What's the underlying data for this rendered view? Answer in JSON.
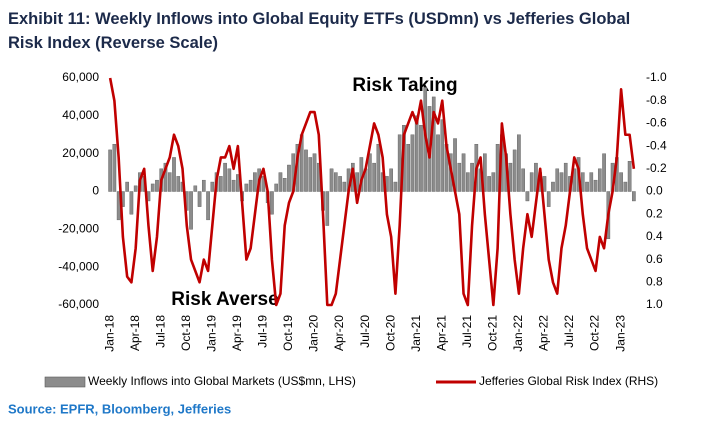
{
  "chart_data": {
    "type": "combo",
    "title": "Exhibit 11: Weekly Inflows into Global Equity ETFs (USDmn) vs Jefferies Global Risk Index (Reverse Scale)",
    "annotations": [
      "Risk Taking",
      "Risk Averse"
    ],
    "source": "Source: EPFR, Bloomberg, Jefferies",
    "categories": [
      "Jan-18",
      null,
      null,
      null,
      null,
      null,
      "Apr-18",
      null,
      null,
      null,
      null,
      null,
      "Jul-18",
      null,
      null,
      null,
      null,
      null,
      "Oct-18",
      null,
      null,
      null,
      null,
      null,
      "Jan-19",
      null,
      null,
      null,
      null,
      null,
      "Apr-19",
      null,
      null,
      null,
      null,
      null,
      "Jul-19",
      null,
      null,
      null,
      null,
      null,
      "Oct-19",
      null,
      null,
      null,
      null,
      null,
      "Jan-20",
      null,
      null,
      null,
      null,
      null,
      "Apr-20",
      null,
      null,
      null,
      null,
      null,
      "Jul-20",
      null,
      null,
      null,
      null,
      null,
      "Oct-20",
      null,
      null,
      null,
      null,
      null,
      "Jan-21",
      null,
      null,
      null,
      null,
      null,
      "Apr-21",
      null,
      null,
      null,
      null,
      null,
      "Jul-21",
      null,
      null,
      null,
      null,
      null,
      "Oct-21",
      null,
      null,
      null,
      null,
      null,
      "Jan-22",
      null,
      null,
      null,
      null,
      null,
      "Apr-22",
      null,
      null,
      null,
      null,
      null,
      "Jul-22",
      null,
      null,
      null,
      null,
      null,
      "Oct-22",
      null,
      null,
      null,
      null,
      null,
      "Jan-23",
      null,
      null,
      null
    ],
    "series": [
      {
        "name": "Weekly Inflows into Global Markets (US$mn, LHS)",
        "type": "bar",
        "color": "#8c8c8c",
        "values": [
          22000,
          25000,
          -15000,
          -8000,
          5000,
          -12000,
          3000,
          10000,
          8000,
          -5000,
          4000,
          6000,
          12000,
          15000,
          10000,
          18000,
          8000,
          5000,
          -10000,
          -20000,
          3000,
          -8000,
          6000,
          -15000,
          5000,
          10000,
          8000,
          15000,
          12000,
          6000,
          9000,
          -5000,
          4000,
          6000,
          10000,
          12000,
          8000,
          -6000,
          -12000,
          4000,
          10000,
          7000,
          14000,
          20000,
          25000,
          30000,
          22000,
          18000,
          20000,
          15000,
          -10000,
          -18000,
          12000,
          10000,
          8000,
          5000,
          12000,
          15000,
          10000,
          18000,
          12000,
          20000,
          15000,
          25000,
          10000,
          8000,
          12000,
          5000,
          30000,
          35000,
          25000,
          30000,
          40000,
          35000,
          55000,
          45000,
          50000,
          30000,
          38000,
          25000,
          20000,
          28000,
          15000,
          20000,
          10000,
          15000,
          25000,
          12000,
          20000,
          8000,
          10000,
          25000,
          30000,
          20000,
          15000,
          22000,
          30000,
          12000,
          -5000,
          10000,
          15000,
          10000,
          8000,
          -8000,
          5000,
          12000,
          10000,
          15000,
          8000,
          12000,
          18000,
          10000,
          5000,
          10000,
          6000,
          12000,
          20000,
          -25000,
          15000,
          18000,
          10000,
          5000,
          16000,
          -5000
        ]
      },
      {
        "name": "Jefferies Global Risk Index (RHS)",
        "type": "line",
        "axis": "y2",
        "color": "#c00000",
        "values": [
          -1.0,
          -0.8,
          -0.3,
          0.4,
          0.75,
          0.8,
          0.5,
          -0.1,
          -0.2,
          0.3,
          0.7,
          0.4,
          -0.1,
          -0.2,
          -0.3,
          -0.5,
          -0.4,
          -0.2,
          0.3,
          0.6,
          0.7,
          0.8,
          0.6,
          0.7,
          0.3,
          -0.1,
          -0.3,
          -0.3,
          -0.4,
          -0.2,
          -0.4,
          0.1,
          0.6,
          0.5,
          0.2,
          -0.1,
          -0.2,
          0.0,
          0.6,
          1.0,
          0.9,
          0.3,
          0.1,
          0.0,
          -0.3,
          -0.5,
          -0.6,
          -0.7,
          -0.7,
          -0.5,
          0.2,
          1.0,
          1.0,
          0.9,
          0.6,
          0.3,
          0.0,
          -0.2,
          0.1,
          -0.1,
          -0.2,
          -0.4,
          -0.6,
          -0.5,
          -0.3,
          0.2,
          0.4,
          0.9,
          0.3,
          -0.5,
          -0.6,
          -0.7,
          -0.6,
          -0.8,
          -0.5,
          -0.3,
          -0.7,
          -0.6,
          -0.8,
          -0.4,
          -0.2,
          0.0,
          0.2,
          0.9,
          1.0,
          0.3,
          -0.2,
          -0.3,
          0.2,
          0.6,
          1.0,
          0.5,
          -0.6,
          -0.3,
          0.2,
          0.6,
          0.9,
          0.5,
          0.2,
          0.4,
          0.1,
          -0.2,
          0.2,
          0.6,
          0.8,
          0.9,
          0.5,
          0.3,
          0.0,
          -0.3,
          -0.2,
          0.2,
          0.5,
          0.6,
          0.7,
          0.4,
          0.5,
          0.2,
          0.0,
          -0.3,
          -0.9,
          -0.5,
          -0.5,
          -0.2
        ]
      }
    ],
    "ylim": [
      -60000,
      60000
    ],
    "yticks": [
      {
        "value": -60000,
        "label": "-60,000"
      },
      {
        "value": -40000,
        "label": "-40,000"
      },
      {
        "value": -20000,
        "label": "-20,000"
      },
      0,
      {
        "value": 20000,
        "label": "20,000"
      },
      {
        "value": 40000,
        "label": "40,000"
      },
      {
        "value": 60000,
        "label": "60,000"
      }
    ],
    "y2lim": [
      -1.0,
      1.0
    ],
    "y2_reversed": true,
    "y2ticks": [
      {
        "value": -1.0,
        "label": "-1.0"
      },
      -0.8,
      -0.6,
      -0.4,
      -0.2,
      {
        "value": 0,
        "label": "0.0"
      },
      0.2,
      0.4,
      0.6,
      0.8,
      {
        "value": 1.0,
        "label": "1.0"
      }
    ],
    "grid": false,
    "legend": "bottom"
  }
}
